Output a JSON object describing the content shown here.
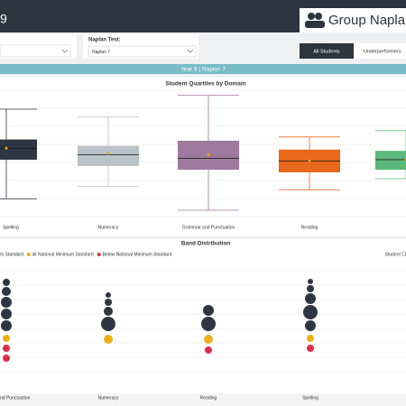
{
  "header": {
    "title": "9",
    "group": "Group Naplan"
  },
  "filters": {
    "label": "Naplan Test:",
    "value": "Naplan 7"
  },
  "tabs": [
    "All Students",
    "Underperformers"
  ],
  "banner": "Year 9 | Naplan 7",
  "chart_data": [
    {
      "type": "box",
      "title": "Student Quartiles by Domain",
      "ylim": [
        0,
        100
      ],
      "grid": true,
      "categories": [
        "Spelling",
        "Numeracy",
        "Grammar and Punctuation",
        "Reading",
        null
      ],
      "boxes": [
        {
          "low": 14,
          "q1": 45,
          "median": 54,
          "q3": 61,
          "high": 85,
          "mean": 54,
          "color": "#2e3643"
        },
        {
          "low": 24,
          "q1": 40,
          "median": 49,
          "q3": 56,
          "high": 79,
          "mean": 50,
          "color": "#b7c3c8"
        },
        {
          "low": 5,
          "q1": 37,
          "median": 46,
          "q3": 60,
          "high": 96,
          "mean": 49,
          "color": "#9e7a9e"
        },
        {
          "low": 21,
          "q1": 35,
          "median": 44,
          "q3": 53,
          "high": 63,
          "mean": 44,
          "color": "#e8681c"
        },
        {
          "low": 30,
          "q1": 37,
          "median": 45,
          "q3": 52,
          "high": 68,
          "mean": 45,
          "color": "#5cb87a"
        }
      ]
    },
    {
      "type": "dot",
      "title": "Band Distribution",
      "note": "Student Cl",
      "legend": [
        {
          "name": "m Standard",
          "color": "#2e3643"
        },
        {
          "name": "At National Minimum Standard",
          "color": "#e8b020"
        },
        {
          "name": "Below National Minimum Standard",
          "color": "#d8304c"
        }
      ],
      "categories": [
        "nd Punctuation",
        "Numeracy",
        "Reading",
        "Spelling"
      ],
      "columns": [
        {
          "above": [
            4,
            5,
            6,
            6,
            6
          ],
          "at": [
            4
          ],
          "below": [
            4,
            4
          ]
        },
        {
          "above": [
            3,
            4,
            5,
            8
          ],
          "at": [
            5
          ],
          "below": []
        },
        {
          "above": [
            6,
            8
          ],
          "at": [
            5
          ],
          "below": [
            4
          ]
        },
        {
          "above": [
            3,
            4,
            6,
            8,
            6
          ],
          "at": [
            4
          ],
          "below": [
            4
          ]
        }
      ]
    }
  ]
}
